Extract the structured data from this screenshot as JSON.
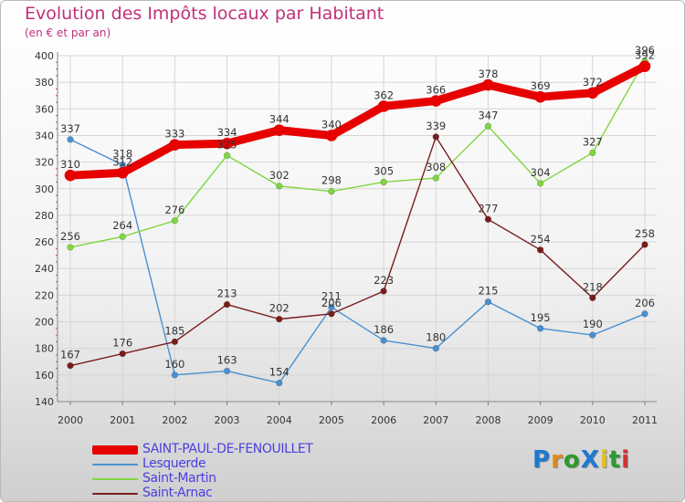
{
  "chart_data": {
    "type": "line",
    "title": "Evolution des Impôts locaux par Habitant",
    "subtitle": "(en € et par an)",
    "x": [
      "2000",
      "2001",
      "2002",
      "2003",
      "2004",
      "2005",
      "2006",
      "2007",
      "2008",
      "2009",
      "2010",
      "2011"
    ],
    "y_ticks": [
      "140",
      "160",
      "180",
      "200",
      "220",
      "240",
      "260",
      "280",
      "300",
      "320",
      "340",
      "360",
      "380",
      "400"
    ],
    "ylim": [
      140,
      400
    ],
    "grid": true,
    "legend_position": "bottom-left",
    "series": [
      {
        "name": "SAINT-PAUL-DE-FENOUILLET",
        "color": "#e60000",
        "values": [
          310,
          312,
          333,
          334,
          344,
          340,
          362,
          366,
          378,
          369,
          372,
          392
        ],
        "labels": [
          "310",
          "312",
          "333",
          "334",
          "344",
          "340",
          "362",
          "366",
          "378",
          "369",
          "372",
          "392"
        ]
      },
      {
        "name": "Lesquerde",
        "color": "#4a90d0",
        "values": [
          337,
          318,
          160,
          163,
          154,
          211,
          186,
          180,
          215,
          195,
          190,
          206
        ],
        "labels": [
          "337",
          "318",
          "160",
          "163",
          "154",
          "211",
          "186",
          "180",
          "215",
          "195",
          "190",
          "206"
        ]
      },
      {
        "name": "Saint-Martin",
        "color": "#7ed640",
        "values": [
          256,
          264,
          276,
          325,
          302,
          298,
          305,
          308,
          347,
          304,
          327,
          396
        ],
        "labels": [
          "256",
          "264",
          "276",
          "325",
          "302",
          "298",
          "305",
          "308",
          "347",
          "304",
          "327",
          "396"
        ]
      },
      {
        "name": "Saint-Arnac",
        "color": "#7a1c1c",
        "values": [
          167,
          176,
          185,
          213,
          202,
          206,
          223,
          339,
          277,
          254,
          218,
          258
        ],
        "labels": [
          "167",
          "176",
          "185",
          "213",
          "202",
          "206",
          "223",
          "339",
          "277",
          "254",
          "218",
          "258"
        ]
      }
    ]
  },
  "logo": {
    "text": "Proxiti",
    "letters": [
      {
        "ch": "P",
        "color": "#1e78d0"
      },
      {
        "ch": "r",
        "color": "#e08a1e"
      },
      {
        "ch": "o",
        "color": "#2f9a2f"
      },
      {
        "ch": "X",
        "color": "#1e78d0"
      },
      {
        "ch": "i",
        "color": "#e0c21e"
      },
      {
        "ch": "t",
        "color": "#2f9a2f"
      },
      {
        "ch": "i",
        "color": "#d03030"
      }
    ]
  }
}
